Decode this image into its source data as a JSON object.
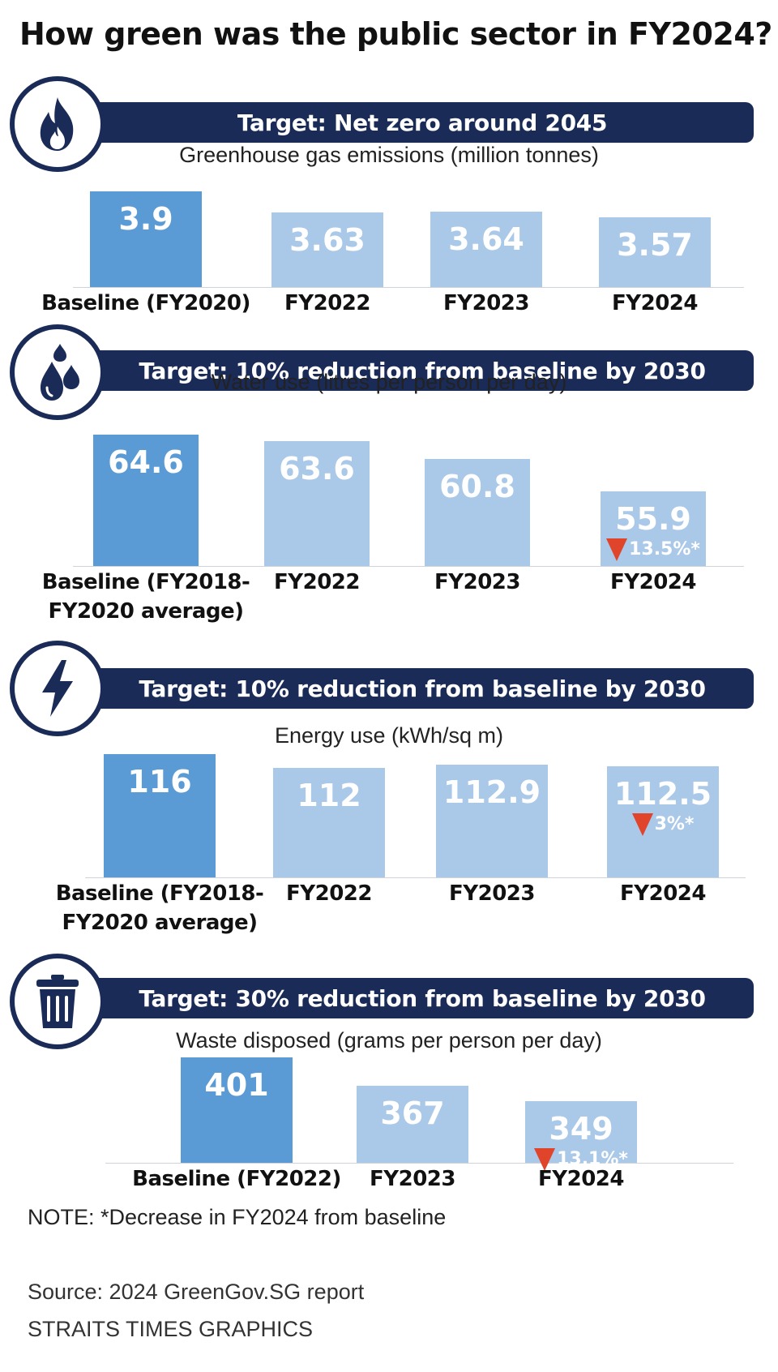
{
  "title": "How green was the public sector in FY2024?",
  "colors": {
    "banner": "#1a2b57",
    "baseline_bar": "#5b9bd5",
    "bar": "#aac8e8",
    "decrease_marker": "#e0442a"
  },
  "note": "NOTE: *Decrease in FY2024 from baseline",
  "source": "Source: 2024 GreenGov.SG report",
  "credit": "STRAITS TIMES GRAPHICS",
  "chart_data": [
    {
      "type": "bar",
      "icon": "flame-icon",
      "target": "Target: Net zero around 2045",
      "title": "Greenhouse gas emissions (million tonnes)",
      "categories": [
        "Baseline (FY2020)",
        "FY2022",
        "FY2023",
        "FY2024"
      ],
      "values": [
        3.9,
        3.63,
        3.64,
        3.57
      ],
      "labels": [
        "3.9",
        "3.63",
        "3.64",
        "3.57"
      ],
      "change": [
        "",
        "",
        "",
        ""
      ]
    },
    {
      "type": "bar",
      "icon": "water-drops-icon",
      "target": "Target: 10% reduction from baseline by 2030",
      "title": "Water use (litres per person per day)",
      "categories": [
        "Baseline (FY2018-\nFY2020 average)",
        "FY2022",
        "FY2023",
        "FY2024"
      ],
      "values": [
        64.6,
        63.6,
        60.8,
        55.9
      ],
      "labels": [
        "64.6",
        "63.6",
        "60.8",
        "55.9"
      ],
      "change": [
        "",
        "",
        "",
        "13.5%*"
      ]
    },
    {
      "type": "bar",
      "icon": "lightning-bolt-icon",
      "target": "Target: 10% reduction from baseline by 2030",
      "title": "Energy use (kWh/sq m)",
      "categories": [
        "Baseline (FY2018-\nFY2020 average)",
        "FY2022",
        "FY2023",
        "FY2024"
      ],
      "values": [
        116,
        112,
        112.9,
        112.5
      ],
      "labels": [
        "116",
        "112",
        "112.9",
        "112.5"
      ],
      "change": [
        "",
        "",
        "",
        "3%*"
      ]
    },
    {
      "type": "bar",
      "icon": "trash-bin-icon",
      "target": "Target: 30% reduction from baseline by 2030",
      "title": "Waste disposed (grams per person per day)",
      "categories": [
        "Baseline (FY2022)",
        "FY2023",
        "FY2024"
      ],
      "values": [
        401,
        367,
        349
      ],
      "labels": [
        "401",
        "367",
        "349"
      ],
      "change": [
        "",
        "",
        "13.1%*"
      ]
    }
  ]
}
